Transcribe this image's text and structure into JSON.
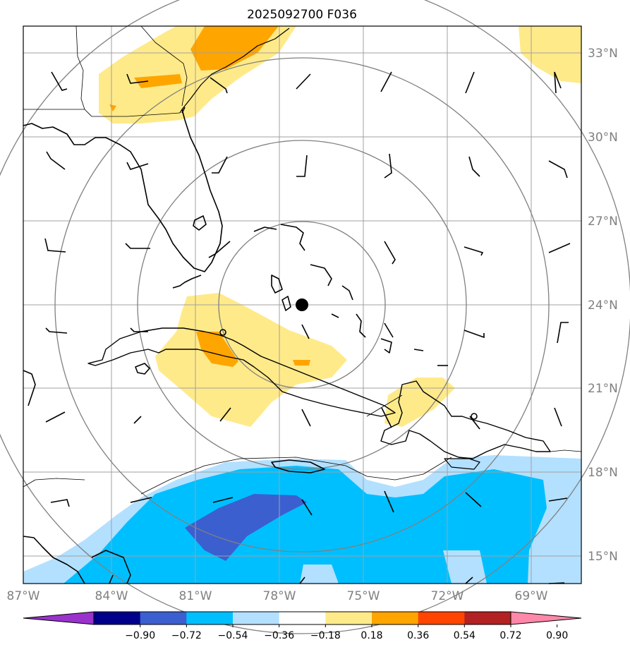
{
  "title": "2025092700 F036",
  "lat_labels": [
    "33°N",
    "30°N",
    "27°N",
    "24°N",
    "21°N",
    "18°N",
    "15°N"
  ],
  "lon_labels": [
    "87°W",
    "84°W",
    "81°W",
    "78°W",
    "75°W",
    "72°W",
    "69°W"
  ],
  "center_marker": {
    "lat": 24.0,
    "lon": -77.0
  },
  "range_rings": 4,
  "colorbar": {
    "ticks": [
      "−0.90",
      "−0.72",
      "−0.54",
      "−0.36",
      "−0.18",
      "0.18",
      "0.36",
      "0.54",
      "0.72",
      "0.90"
    ],
    "colors": [
      "#9933cc",
      "#00008b",
      "#3b5fcf",
      "#00bfff",
      "#b3e0ff",
      "#ffffff",
      "#ffea8a",
      "#ffa500",
      "#ff4500",
      "#b22222",
      "#ff88aa"
    ],
    "extend": "both"
  },
  "colors": {
    "coast": "#000000",
    "grid": "#999999",
    "ring": "#808080",
    "label": "#808080"
  }
}
